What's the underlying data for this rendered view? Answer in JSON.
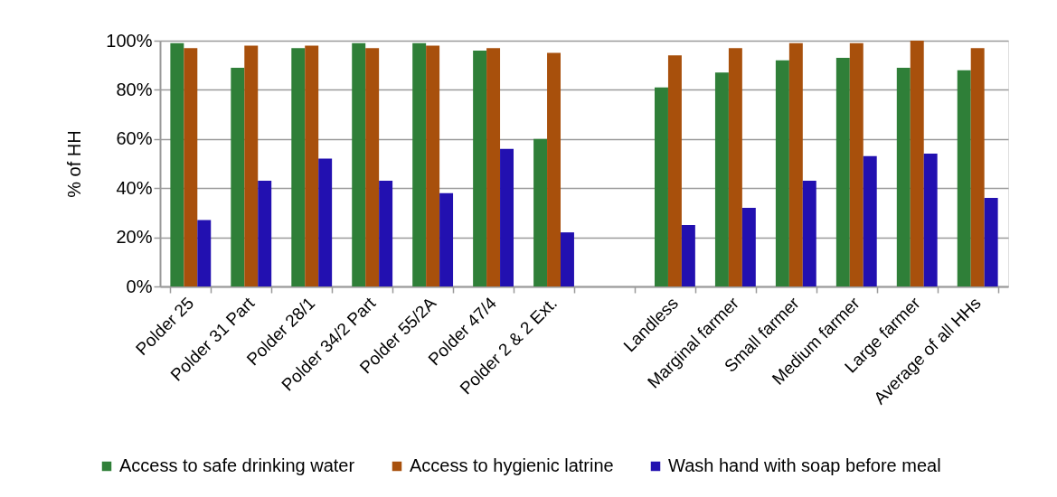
{
  "chart_data": {
    "type": "bar",
    "ylabel": "% of HH",
    "categories": [
      "Polder 25",
      "Polder 31 Part",
      "Polder 28/1",
      "Polder 34/2 Part",
      "Polder 55/2A",
      "Polder 47/4",
      "Polder 2 & 2 Ext.",
      null,
      "Landless",
      "Marginal farmer",
      "Small farmer",
      "Medium farmer",
      "Large farmer",
      "Average of all HHs"
    ],
    "series": [
      {
        "name": "Access to safe drinking water",
        "color": "#2f7f38",
        "values": [
          99,
          89,
          97,
          99,
          99,
          96,
          60,
          null,
          81,
          87,
          92,
          93,
          89,
          88
        ]
      },
      {
        "name": "Access to hygienic latrine",
        "color": "#a8500c",
        "values": [
          97,
          98,
          98,
          97,
          98,
          97,
          95,
          null,
          94,
          97,
          99,
          99,
          100,
          97
        ]
      },
      {
        "name": "Wash hand with soap before meal",
        "color": "#2210b0",
        "values": [
          27,
          43,
          52,
          43,
          38,
          56,
          22,
          null,
          25,
          32,
          43,
          53,
          54,
          36
        ]
      }
    ],
    "ylim": [
      0,
      100
    ],
    "yticks": [
      {
        "value": 0,
        "label": "0%"
      },
      {
        "value": 20,
        "label": "20%"
      },
      {
        "value": 40,
        "label": "40%"
      },
      {
        "value": 60,
        "label": "60%"
      },
      {
        "value": 80,
        "label": "80%"
      },
      {
        "value": 100,
        "label": "100%"
      }
    ],
    "grid": "y",
    "legend": "bottom"
  }
}
